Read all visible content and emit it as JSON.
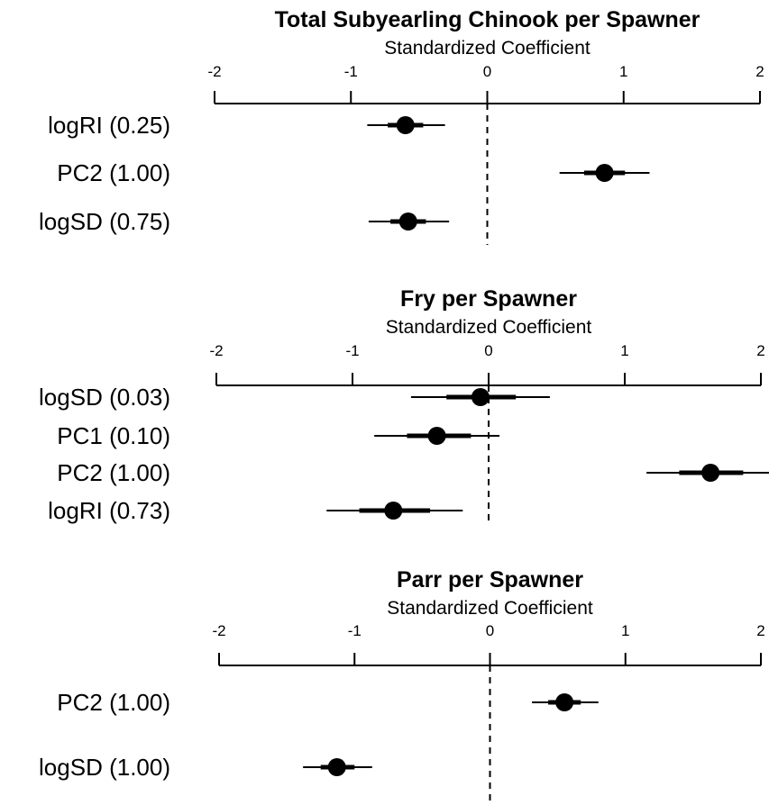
{
  "chart_data": [
    {
      "type": "forest",
      "title": "Total Subyearling Chinook per Spawner",
      "xlabel": "Standardized Coefficient",
      "xlim": [
        -2,
        2
      ],
      "ticks": [
        "-2",
        "-1",
        "0",
        "1",
        "2"
      ],
      "rows": [
        {
          "label": "logRI (0.25)",
          "estimate": -0.6,
          "inner": [
            -0.73,
            -0.47
          ],
          "outer": [
            -0.88,
            -0.31
          ]
        },
        {
          "label": "PC2 (1.00)",
          "estimate": 0.86,
          "inner": [
            0.71,
            1.01
          ],
          "outer": [
            0.53,
            1.19
          ]
        },
        {
          "label": "logSD (0.75)",
          "estimate": -0.58,
          "inner": [
            -0.71,
            -0.45
          ],
          "outer": [
            -0.87,
            -0.28
          ]
        }
      ]
    },
    {
      "type": "forest",
      "title": "Fry per Spawner",
      "xlabel": "Standardized Coefficient",
      "xlim": [
        -2,
        2
      ],
      "ticks": [
        "-2",
        "-1",
        "0",
        "1",
        "2"
      ],
      "rows": [
        {
          "label": "logSD (0.03)",
          "estimate": -0.06,
          "inner": [
            -0.31,
            0.2
          ],
          "outer": [
            -0.57,
            0.45
          ]
        },
        {
          "label": "PC1 (0.10)",
          "estimate": -0.38,
          "inner": [
            -0.6,
            -0.13
          ],
          "outer": [
            -0.84,
            0.08
          ]
        },
        {
          "label": "PC2 (1.00)",
          "estimate": 1.63,
          "inner": [
            1.4,
            1.87
          ],
          "outer": [
            1.16,
            2.07
          ]
        },
        {
          "label": "logRI (0.73)",
          "estimate": -0.7,
          "inner": [
            -0.95,
            -0.43
          ],
          "outer": [
            -1.19,
            -0.19
          ]
        }
      ]
    },
    {
      "type": "forest",
      "title": "Parr per Spawner",
      "xlabel": "Standardized Coefficient",
      "xlim": [
        -2,
        2
      ],
      "ticks": [
        "-2",
        "-1",
        "0",
        "1",
        "2"
      ],
      "rows": [
        {
          "label": "PC2 (1.00)",
          "estimate": 0.55,
          "inner": [
            0.43,
            0.67
          ],
          "outer": [
            0.31,
            0.8
          ]
        },
        {
          "label": "logSD (1.00)",
          "estimate": -1.13,
          "inner": [
            -1.25,
            -1.0
          ],
          "outer": [
            -1.38,
            -0.87
          ]
        }
      ]
    }
  ]
}
